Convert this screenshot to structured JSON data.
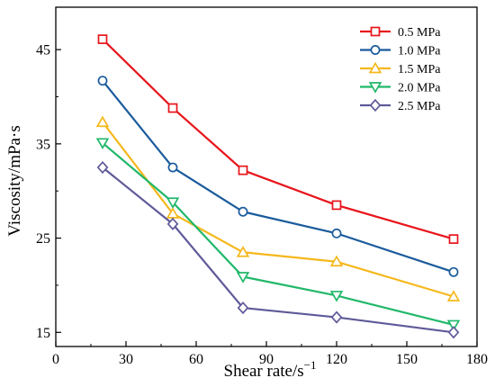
{
  "chart_data": {
    "type": "line",
    "title": "",
    "xlabel": "Shear rate/s",
    "xlabel_sup": "−1",
    "ylabel": "Viscosity/mPa·s",
    "xlim": [
      0,
      180
    ],
    "ylim": [
      13.5,
      49.5
    ],
    "xticks": [
      0,
      30,
      60,
      90,
      120,
      150,
      180
    ],
    "yticks": [
      15,
      25,
      35,
      45
    ],
    "x_minor_step": 15,
    "y_minor_step": 5,
    "grid": false,
    "legend_position": "top-right",
    "x": [
      20,
      50,
      80,
      120,
      170
    ],
    "series": [
      {
        "name": "0.5 MPa",
        "values": [
          46.1,
          38.8,
          32.2,
          28.5,
          24.9
        ],
        "color": "#e8151b",
        "marker": "square"
      },
      {
        "name": "1.0 MPa",
        "values": [
          41.7,
          32.5,
          27.8,
          25.5,
          21.4
        ],
        "color": "#1a5b9c",
        "marker": "circle"
      },
      {
        "name": "1.5 MPa",
        "values": [
          37.3,
          27.6,
          23.5,
          22.5,
          18.8
        ],
        "color": "#f5b81c",
        "marker": "triangle-up"
      },
      {
        "name": "2.0 MPa",
        "values": [
          35.1,
          28.8,
          20.9,
          18.9,
          15.8
        ],
        "color": "#21b86a",
        "marker": "triangle-down"
      },
      {
        "name": "2.5 MPa",
        "values": [
          32.5,
          26.5,
          17.6,
          16.6,
          15.0
        ],
        "color": "#5f5a99",
        "marker": "diamond"
      }
    ]
  }
}
